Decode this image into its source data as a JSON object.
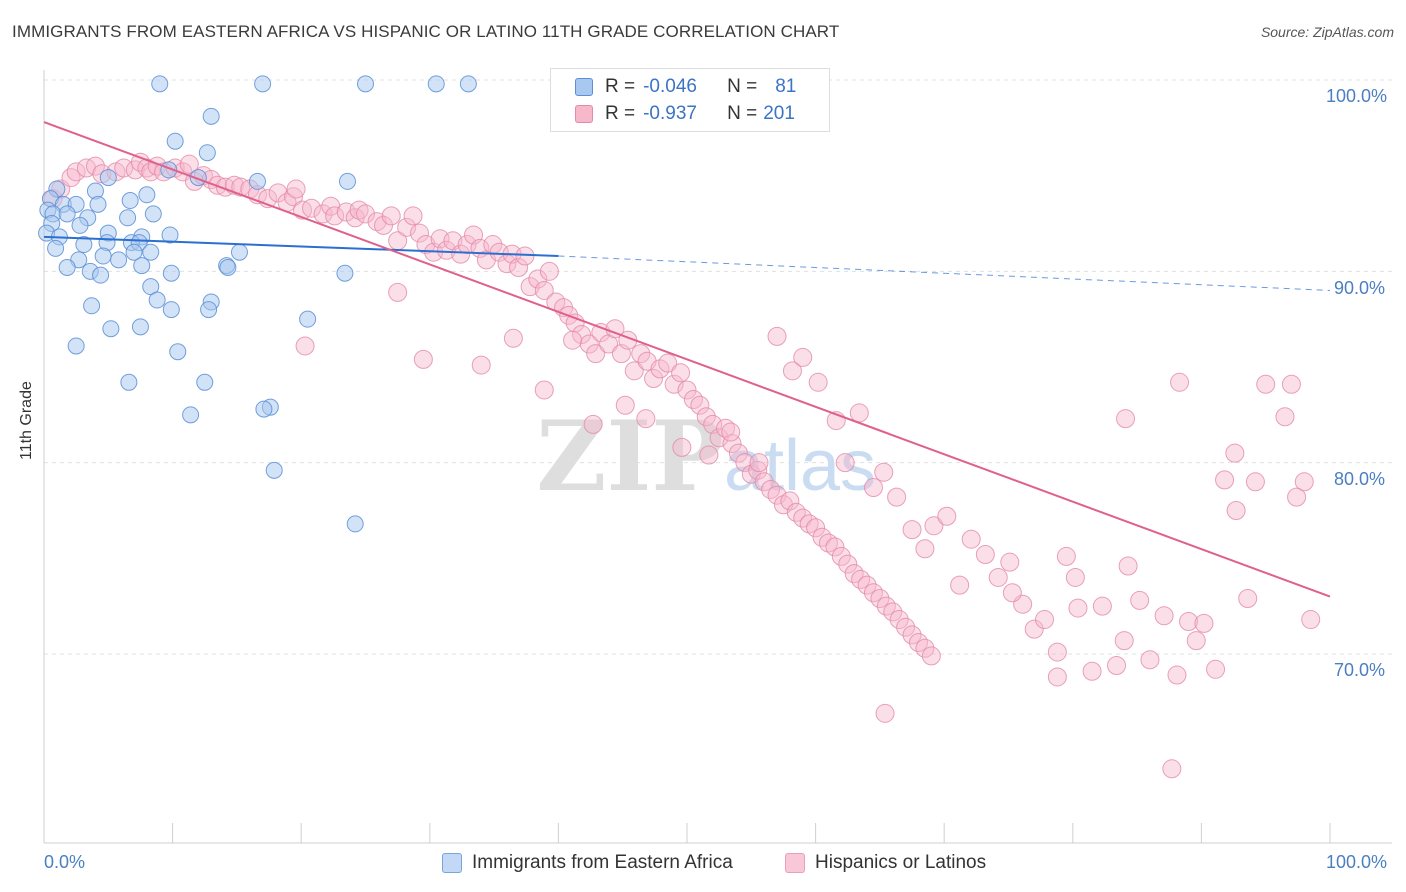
{
  "header": {
    "title": "IMMIGRANTS FROM EASTERN AFRICA VS HISPANIC OR LATINO 11TH GRADE CORRELATION CHART",
    "source": "Source: ZipAtlas.com"
  },
  "watermark": {
    "zip": "ZIP",
    "atlas": "atlas"
  },
  "legend": {
    "row1": {
      "r_label": "R =",
      "r_value": "-0.046",
      "n_label": "N =",
      "n_value": "81"
    },
    "row2": {
      "r_label": "R =",
      "r_value": "-0.937",
      "n_label": "N =",
      "n_value": "201"
    }
  },
  "colors": {
    "blue_fill": "#a8c8f0",
    "blue_stroke": "#5b8fd6",
    "blue_line": "#2b6fd0",
    "pink_fill": "#f7b8cc",
    "pink_stroke": "#e48aa8",
    "pink_line": "#e0608c",
    "tick_text": "#4a7fc1",
    "grid": "#e0e0e0"
  },
  "chart_data": {
    "type": "scatter",
    "title": "IMMIGRANTS FROM EASTERN AFRICA VS HISPANIC OR LATINO 11TH GRADE CORRELATION CHART",
    "xlabel": "",
    "ylabel": "11th Grade",
    "xlim": [
      0,
      100
    ],
    "ylim": [
      60,
      100
    ],
    "x_tick_labels": [
      "0.0%",
      "100.0%"
    ],
    "y_tick_labels": [
      "100.0%",
      "90.0%",
      "80.0%",
      "70.0%"
    ],
    "y_ticks": [
      100,
      90,
      80,
      70
    ],
    "series": [
      {
        "name": "Immigrants from Eastern Africa",
        "color": "#a8c8f0",
        "R": -0.046,
        "N": 81,
        "trend": {
          "x": [
            0,
            40
          ],
          "y": [
            91.8,
            90.8
          ],
          "dashed_to": [
            100,
            89.0
          ]
        },
        "points": [
          [
            9,
            99.8
          ],
          [
            17,
            99.8
          ],
          [
            25,
            99.8
          ],
          [
            30.5,
            99.8
          ],
          [
            33,
            99.8
          ],
          [
            13,
            98.1
          ],
          [
            12.7,
            96.2
          ],
          [
            10.2,
            96.8
          ],
          [
            9.7,
            95.3
          ],
          [
            5,
            94.9
          ],
          [
            12,
            94.9
          ],
          [
            16.6,
            94.7
          ],
          [
            23.6,
            94.7
          ],
          [
            1,
            94.3
          ],
          [
            4,
            94.2
          ],
          [
            8,
            94.0
          ],
          [
            0.5,
            93.8
          ],
          [
            1.5,
            93.5
          ],
          [
            2.5,
            93.5
          ],
          [
            4.2,
            93.5
          ],
          [
            6.7,
            93.7
          ],
          [
            0.3,
            93.2
          ],
          [
            0.7,
            93.0
          ],
          [
            1.8,
            93.0
          ],
          [
            8.5,
            93.0
          ],
          [
            3.4,
            92.8
          ],
          [
            6.5,
            92.8
          ],
          [
            0.6,
            92.5
          ],
          [
            2.8,
            92.4
          ],
          [
            0.2,
            92.0
          ],
          [
            1.2,
            91.8
          ],
          [
            5,
            92.0
          ],
          [
            7.6,
            91.8
          ],
          [
            9.8,
            91.9
          ],
          [
            3.1,
            91.4
          ],
          [
            4.9,
            91.5
          ],
          [
            6.8,
            91.5
          ],
          [
            7.4,
            91.5
          ],
          [
            0.9,
            91.2
          ],
          [
            7,
            91.0
          ],
          [
            8.3,
            91.0
          ],
          [
            15.2,
            91.0
          ],
          [
            4.6,
            90.8
          ],
          [
            2.7,
            90.6
          ],
          [
            5.8,
            90.6
          ],
          [
            1.8,
            90.2
          ],
          [
            3.6,
            90.0
          ],
          [
            7.6,
            90.3
          ],
          [
            14.2,
            90.3
          ],
          [
            14.3,
            90.2
          ],
          [
            4.4,
            89.8
          ],
          [
            9.9,
            89.9
          ],
          [
            23.4,
            89.9
          ],
          [
            8.3,
            89.2
          ],
          [
            8.8,
            88.5
          ],
          [
            3.7,
            88.2
          ],
          [
            13,
            88.4
          ],
          [
            9.9,
            88.0
          ],
          [
            12.8,
            88.0
          ],
          [
            20.5,
            87.5
          ],
          [
            5.2,
            87.0
          ],
          [
            7.5,
            87.1
          ],
          [
            2.5,
            86.1
          ],
          [
            10.4,
            85.8
          ],
          [
            6.6,
            84.2
          ],
          [
            12.5,
            84.2
          ],
          [
            11.4,
            82.5
          ],
          [
            17.6,
            82.9
          ],
          [
            17.1,
            82.8
          ],
          [
            17.9,
            79.6
          ],
          [
            24.2,
            76.8
          ]
        ]
      },
      {
        "name": "Hispanics or Latinos",
        "color": "#f7b8cc",
        "R": -0.937,
        "N": 201,
        "trend": {
          "x": [
            0,
            100
          ],
          "y": [
            97.8,
            73.0
          ]
        },
        "points": [
          [
            0.7,
            93.8
          ],
          [
            1.3,
            94.3
          ],
          [
            2.1,
            94.9
          ],
          [
            2.5,
            95.2
          ],
          [
            3.3,
            95.4
          ],
          [
            4.0,
            95.5
          ],
          [
            4.5,
            95.1
          ],
          [
            5.6,
            95.2
          ],
          [
            6.2,
            95.4
          ],
          [
            7.1,
            95.3
          ],
          [
            7.5,
            95.7
          ],
          [
            8.0,
            95.4
          ],
          [
            8.3,
            95.2
          ],
          [
            8.8,
            95.5
          ],
          [
            9.3,
            95.2
          ],
          [
            10.2,
            95.4
          ],
          [
            10.8,
            95.2
          ],
          [
            11.3,
            95.6
          ],
          [
            11.7,
            94.7
          ],
          [
            12.4,
            95.0
          ],
          [
            13.0,
            94.8
          ],
          [
            13.5,
            94.5
          ],
          [
            14.1,
            94.4
          ],
          [
            14.8,
            94.5
          ],
          [
            15.3,
            94.4
          ],
          [
            16.0,
            94.3
          ],
          [
            16.6,
            94.0
          ],
          [
            17.4,
            93.8
          ],
          [
            18.2,
            94.1
          ],
          [
            18.9,
            93.6
          ],
          [
            19.4,
            93.9
          ],
          [
            19.6,
            94.3
          ],
          [
            20.1,
            93.2
          ],
          [
            20.8,
            93.3
          ],
          [
            21.7,
            93.0
          ],
          [
            22.3,
            93.4
          ],
          [
            22.6,
            92.9
          ],
          [
            23.5,
            93.1
          ],
          [
            24.2,
            92.8
          ],
          [
            24.5,
            93.2
          ],
          [
            25.0,
            93.0
          ],
          [
            25.9,
            92.6
          ],
          [
            26.4,
            92.4
          ],
          [
            27.0,
            92.9
          ],
          [
            27.5,
            91.6
          ],
          [
            28.2,
            92.3
          ],
          [
            28.7,
            92.9
          ],
          [
            29.2,
            92.0
          ],
          [
            29.7,
            91.4
          ],
          [
            30.3,
            91.0
          ],
          [
            30.8,
            91.7
          ],
          [
            31.3,
            91.1
          ],
          [
            31.8,
            91.6
          ],
          [
            32.4,
            90.9
          ],
          [
            32.9,
            91.4
          ],
          [
            33.4,
            91.9
          ],
          [
            33.9,
            91.2
          ],
          [
            34.4,
            90.6
          ],
          [
            34.9,
            91.4
          ],
          [
            35.4,
            91.0
          ],
          [
            36.0,
            90.4
          ],
          [
            36.4,
            90.9
          ],
          [
            36.9,
            90.2
          ],
          [
            37.4,
            90.8
          ],
          [
            37.8,
            89.2
          ],
          [
            38.4,
            89.6
          ],
          [
            38.9,
            89.0
          ],
          [
            39.3,
            90.0
          ],
          [
            39.8,
            88.4
          ],
          [
            40.4,
            88.1
          ],
          [
            40.8,
            87.7
          ],
          [
            41.3,
            87.3
          ],
          [
            41.8,
            86.7
          ],
          [
            42.4,
            86.2
          ],
          [
            42.9,
            85.7
          ],
          [
            43.3,
            86.8
          ],
          [
            43.9,
            86.2
          ],
          [
            44.4,
            87.0
          ],
          [
            44.9,
            85.7
          ],
          [
            45.4,
            86.4
          ],
          [
            45.9,
            84.8
          ],
          [
            46.4,
            85.7
          ],
          [
            46.9,
            85.3
          ],
          [
            47.4,
            84.4
          ],
          [
            47.9,
            84.9
          ],
          [
            48.5,
            85.2
          ],
          [
            49.0,
            84.1
          ],
          [
            49.5,
            84.7
          ],
          [
            50.0,
            83.8
          ],
          [
            50.5,
            83.3
          ],
          [
            51.0,
            83.0
          ],
          [
            51.5,
            82.4
          ],
          [
            52.0,
            82.0
          ],
          [
            52.5,
            81.3
          ],
          [
            53.0,
            81.8
          ],
          [
            53.5,
            81.0
          ],
          [
            54.0,
            80.5
          ],
          [
            54.5,
            80.0
          ],
          [
            55.0,
            79.4
          ],
          [
            55.5,
            79.6
          ],
          [
            56.0,
            79.0
          ],
          [
            56.5,
            78.6
          ],
          [
            57.0,
            78.3
          ],
          [
            57.5,
            77.8
          ],
          [
            58.0,
            78.0
          ],
          [
            58.5,
            77.4
          ],
          [
            59.0,
            77.1
          ],
          [
            59.5,
            76.8
          ],
          [
            60.0,
            76.6
          ],
          [
            60.5,
            76.1
          ],
          [
            61.0,
            75.8
          ],
          [
            61.5,
            75.6
          ],
          [
            62.0,
            75.1
          ],
          [
            62.5,
            74.7
          ],
          [
            63.0,
            74.2
          ],
          [
            63.5,
            73.9
          ],
          [
            64.0,
            73.6
          ],
          [
            64.5,
            73.2
          ],
          [
            65.0,
            72.9
          ],
          [
            65.5,
            72.5
          ],
          [
            66.0,
            72.2
          ],
          [
            66.5,
            71.8
          ],
          [
            67.0,
            71.4
          ],
          [
            67.5,
            71.0
          ],
          [
            68.0,
            70.6
          ],
          [
            68.5,
            70.3
          ],
          [
            69.0,
            69.9
          ],
          [
            20.3,
            86.1
          ],
          [
            27.5,
            88.9
          ],
          [
            29.5,
            85.4
          ],
          [
            34.0,
            85.1
          ],
          [
            36.5,
            86.5
          ],
          [
            38.9,
            83.8
          ],
          [
            41.1,
            86.4
          ],
          [
            42.7,
            82.0
          ],
          [
            45.2,
            83.0
          ],
          [
            46.8,
            82.3
          ],
          [
            49.6,
            80.8
          ],
          [
            51.7,
            80.4
          ],
          [
            53.4,
            81.6
          ],
          [
            55.6,
            80.0
          ],
          [
            57.0,
            86.6
          ],
          [
            58.2,
            84.8
          ],
          [
            59.0,
            85.5
          ],
          [
            60.2,
            84.2
          ],
          [
            61.6,
            82.2
          ],
          [
            62.3,
            80.0
          ],
          [
            63.4,
            82.6
          ],
          [
            64.5,
            78.7
          ],
          [
            65.3,
            79.5
          ],
          [
            66.3,
            78.2
          ],
          [
            67.5,
            76.5
          ],
          [
            68.5,
            75.5
          ],
          [
            69.2,
            76.7
          ],
          [
            70.2,
            77.2
          ],
          [
            71.2,
            73.6
          ],
          [
            72.1,
            76.0
          ],
          [
            73.2,
            75.2
          ],
          [
            74.2,
            74.0
          ],
          [
            75.1,
            74.8
          ],
          [
            76.1,
            72.6
          ],
          [
            77.0,
            71.3
          ],
          [
            77.8,
            71.8
          ],
          [
            78.8,
            70.1
          ],
          [
            79.5,
            75.1
          ],
          [
            80.4,
            72.4
          ],
          [
            81.5,
            69.1
          ],
          [
            82.3,
            72.5
          ],
          [
            83.4,
            69.4
          ],
          [
            84.3,
            74.6
          ],
          [
            85.2,
            72.8
          ],
          [
            86.0,
            69.7
          ],
          [
            87.1,
            72.0
          ],
          [
            88.1,
            68.9
          ],
          [
            89.0,
            71.7
          ],
          [
            89.6,
            70.7
          ],
          [
            90.2,
            71.6
          ],
          [
            91.1,
            69.2
          ],
          [
            91.8,
            79.1
          ],
          [
            92.7,
            77.5
          ],
          [
            93.6,
            72.9
          ],
          [
            84.1,
            82.3
          ],
          [
            88.3,
            84.2
          ],
          [
            95.0,
            84.1
          ],
          [
            97.0,
            84.1
          ],
          [
            96.5,
            82.4
          ],
          [
            98.0,
            79.0
          ],
          [
            97.4,
            78.2
          ],
          [
            92.6,
            80.5
          ],
          [
            94.2,
            79.0
          ],
          [
            98.5,
            71.8
          ],
          [
            84.0,
            70.7
          ],
          [
            80.2,
            74.0
          ],
          [
            75.3,
            73.2
          ],
          [
            87.7,
            64.0
          ],
          [
            65.4,
            66.9
          ],
          [
            78.8,
            68.8
          ]
        ]
      }
    ]
  },
  "bottom_legend": {
    "item1": "Immigrants from Eastern Africa",
    "item2": "Hispanics or Latinos"
  }
}
